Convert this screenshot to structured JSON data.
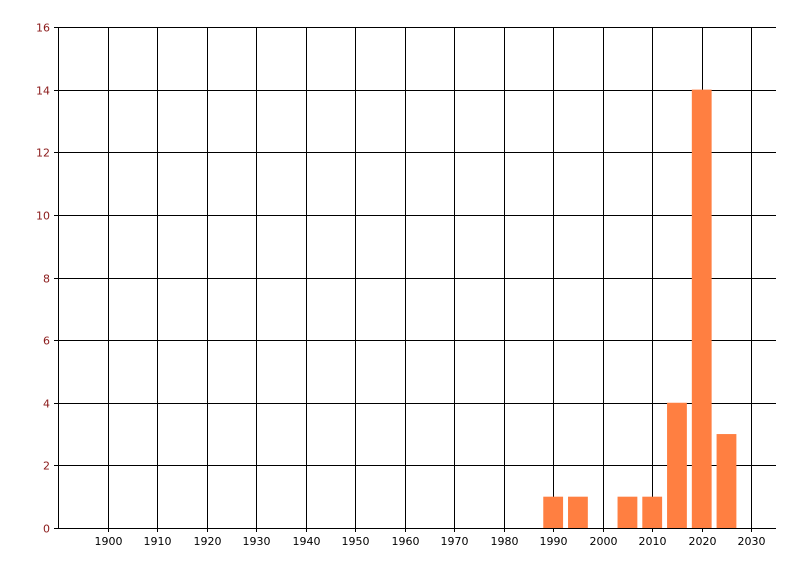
{
  "chart_data": {
    "type": "bar",
    "title": "",
    "xlabel": "",
    "ylabel": "",
    "x": [
      1990,
      1995,
      2005,
      2010,
      2015,
      2020,
      2025
    ],
    "values": [
      1,
      1,
      1,
      1,
      4,
      14,
      3
    ],
    "bar_width_years": 4,
    "xlim": [
      1890,
      2035
    ],
    "ylim": [
      0,
      16
    ],
    "xticks": [
      1900,
      1910,
      1920,
      1930,
      1940,
      1950,
      1960,
      1970,
      1980,
      1990,
      2000,
      2010,
      2020,
      2030
    ],
    "yticks": [
      0,
      2,
      4,
      6,
      8,
      10,
      12,
      14,
      16
    ],
    "grid": true,
    "legend": "none",
    "colors": {
      "bar": "#ff7f41",
      "grid": "#000000",
      "ytick_label": "#8b1a1a",
      "xtick_label": "#000000"
    }
  }
}
